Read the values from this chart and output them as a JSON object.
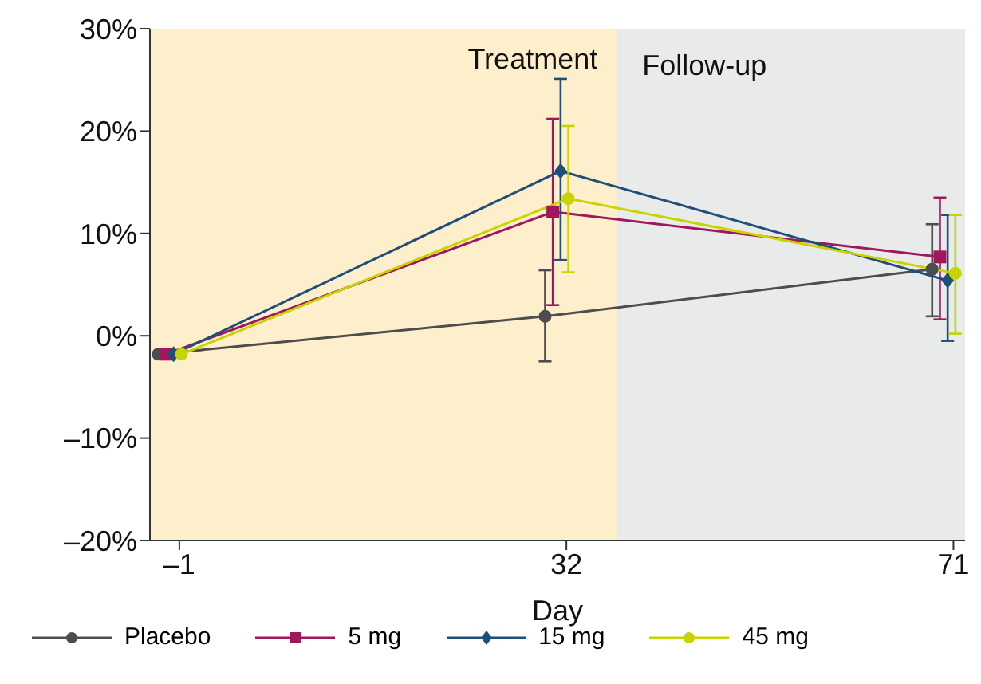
{
  "chart_data": {
    "type": "line",
    "xlabel": "Day",
    "categories": [
      "–1",
      "32",
      "71"
    ],
    "ylim": [
      -20,
      30
    ],
    "yticks": [
      {
        "value": -20,
        "label": "–20%"
      },
      {
        "value": -10,
        "label": "–10%"
      },
      {
        "value": 0,
        "label": "0%"
      },
      {
        "value": 10,
        "label": "10%"
      },
      {
        "value": 20,
        "label": "20%"
      },
      {
        "value": 30,
        "label": "30%"
      }
    ],
    "series": [
      {
        "name": "Placebo",
        "color": "#4d4d4d",
        "marker": "circle",
        "values": [
          -1.8,
          1.9,
          6.5
        ],
        "errors": [
          null,
          [
            -2.5,
            6.4
          ],
          [
            1.9,
            10.9
          ]
        ]
      },
      {
        "name": "5 mg",
        "color": "#a0175e",
        "marker": "square",
        "values": [
          -1.8,
          12.1,
          7.7
        ],
        "errors": [
          null,
          [
            3.0,
            21.2
          ],
          [
            1.6,
            13.5
          ]
        ]
      },
      {
        "name": "15 mg",
        "color": "#1f4e79",
        "marker": "diamond",
        "values": [
          -1.8,
          16.1,
          5.4
        ],
        "errors": [
          null,
          [
            7.4,
            25.1
          ],
          [
            -0.5,
            11.8
          ]
        ]
      },
      {
        "name": "45 mg",
        "color": "#c8d400",
        "marker": "circle",
        "values": [
          -1.8,
          13.4,
          6.1
        ],
        "errors": [
          null,
          [
            6.2,
            20.5
          ],
          [
            0.2,
            11.8
          ]
        ]
      }
    ],
    "bands": [
      {
        "axis": "x",
        "from": "–1",
        "to": "32",
        "label": "Treatment",
        "color": "#fdefcc"
      },
      {
        "axis": "x",
        "from": "32",
        "to": "71",
        "label": "Follow-up",
        "color": "#e8ebea"
      }
    ],
    "grid": false,
    "legend": "bottom",
    "line_style": "solid"
  }
}
